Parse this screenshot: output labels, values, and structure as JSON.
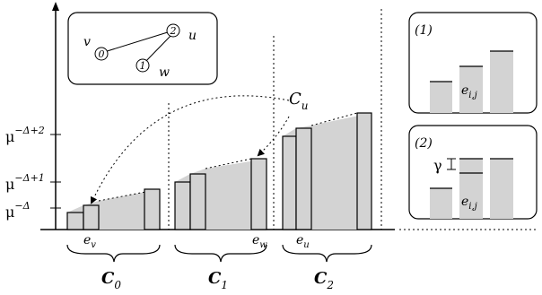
{
  "graph": {
    "nodes": [
      {
        "id": "0",
        "name": "v"
      },
      {
        "id": "2",
        "name": "u"
      },
      {
        "id": "1",
        "name": "w"
      }
    ]
  },
  "axis": {
    "ticks": [
      {
        "base": "μ",
        "exp": "−Δ+2"
      },
      {
        "base": "μ",
        "exp": "−Δ+1"
      },
      {
        "base": "μ",
        "exp": "−Δ"
      }
    ]
  },
  "groups": {
    "labels": [
      {
        "base": "C",
        "sub": "0"
      },
      {
        "base": "C",
        "sub": "1"
      },
      {
        "base": "C",
        "sub": "2"
      }
    ],
    "edge_labels": [
      {
        "base": "e",
        "sub": "v"
      },
      {
        "base": "e",
        "sub": "w"
      },
      {
        "base": "e",
        "sub": "u"
      }
    ],
    "arrow_label": {
      "base": "C",
      "sub": "u"
    }
  },
  "insets": {
    "first": {
      "tag": "(1)",
      "bar_label": {
        "base": "e",
        "sub": "i,j"
      }
    },
    "second": {
      "tag": "(2)",
      "bar_label": {
        "base": "e",
        "sub": "i,j"
      },
      "gap_label": "γ"
    }
  }
}
